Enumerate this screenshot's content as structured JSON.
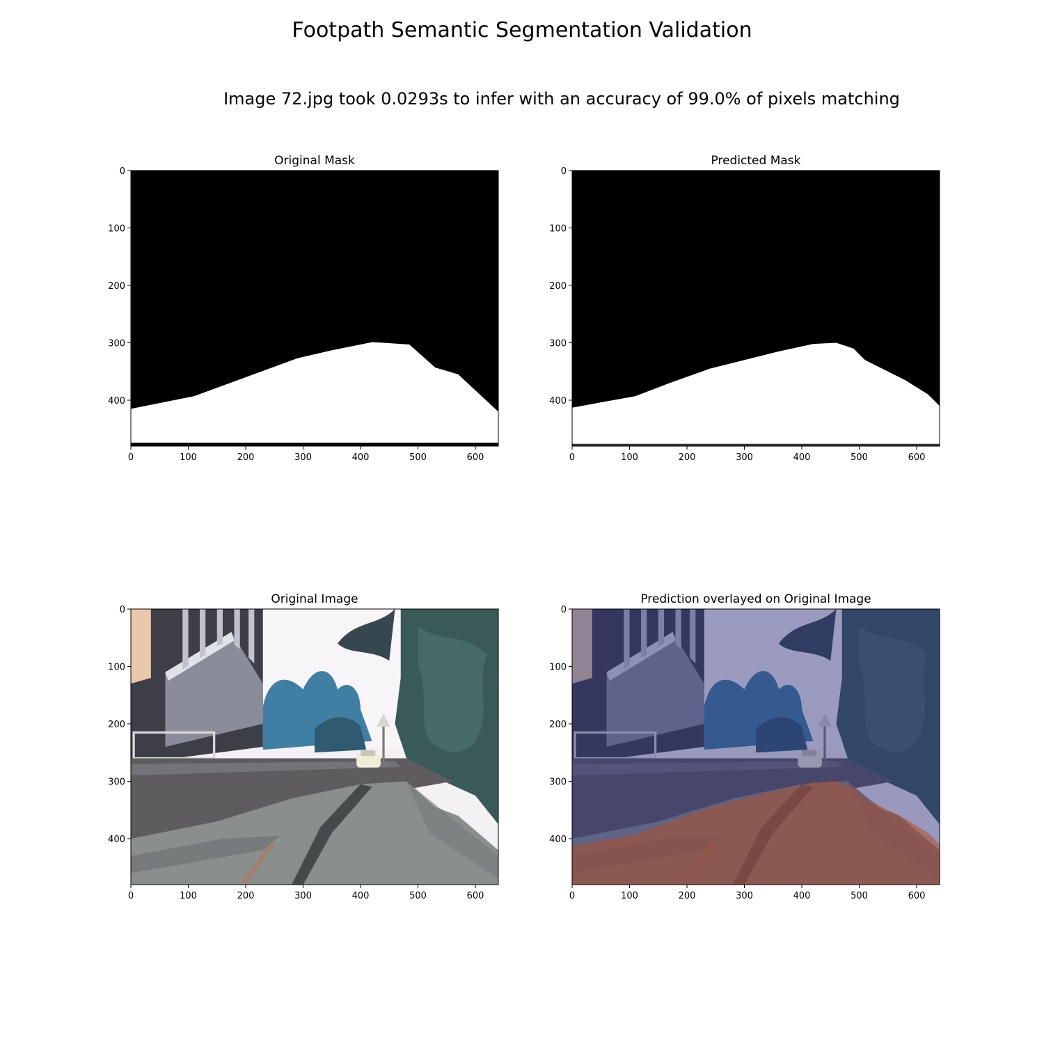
{
  "figure": {
    "suptitle": "Footpath Semantic Segmentation Validation",
    "subtitle": "Image 72.jpg took 0.0293s to infer with an accuracy of 99.0% of pixels matching"
  },
  "chart_data": [
    {
      "type": "image",
      "title": "Original Mask",
      "xlim": [
        0,
        640
      ],
      "ylim": [
        480,
        0
      ],
      "xticks": [
        0,
        100,
        200,
        300,
        400,
        500,
        600
      ],
      "yticks": [
        0,
        100,
        200,
        300,
        400
      ],
      "mask_boundary": [
        [
          0,
          415
        ],
        [
          50,
          405
        ],
        [
          110,
          393
        ],
        [
          200,
          360
        ],
        [
          290,
          327
        ],
        [
          350,
          313
        ],
        [
          420,
          299
        ],
        [
          440,
          300
        ],
        [
          485,
          303
        ],
        [
          530,
          343
        ],
        [
          570,
          355
        ],
        [
          640,
          420
        ]
      ],
      "colors": {
        "background": "#000000",
        "footpath": "#ffffff"
      }
    },
    {
      "type": "image",
      "title": "Predicted Mask",
      "xlim": [
        0,
        640
      ],
      "ylim": [
        480,
        0
      ],
      "xticks": [
        0,
        100,
        200,
        300,
        400,
        500,
        600
      ],
      "yticks": [
        0,
        100,
        200,
        300,
        400
      ],
      "mask_boundary": [
        [
          0,
          413
        ],
        [
          60,
          402
        ],
        [
          110,
          393
        ],
        [
          170,
          370
        ],
        [
          240,
          345
        ],
        [
          300,
          330
        ],
        [
          360,
          315
        ],
        [
          420,
          302
        ],
        [
          460,
          300
        ],
        [
          490,
          310
        ],
        [
          510,
          330
        ],
        [
          540,
          345
        ],
        [
          580,
          365
        ],
        [
          620,
          390
        ],
        [
          640,
          410
        ]
      ],
      "colors": {
        "background": "#000000",
        "footpath": "#ffffff"
      }
    },
    {
      "type": "image",
      "title": "Original Image",
      "xlim": [
        0,
        640
      ],
      "ylim": [
        480,
        0
      ],
      "xticks": [
        0,
        100,
        200,
        300,
        400,
        500,
        600
      ],
      "yticks": [
        0,
        100,
        200,
        300,
        400
      ]
    },
    {
      "type": "image",
      "title": "Prediction overlayed on Original Image",
      "xlim": [
        0,
        640
      ],
      "ylim": [
        480,
        0
      ],
      "xticks": [
        0,
        100,
        200,
        300,
        400,
        500,
        600
      ],
      "yticks": [
        0,
        100,
        200,
        300,
        400
      ],
      "overlay_colors": {
        "background": "#2a2f7a",
        "footpath": "#b0502a"
      }
    }
  ]
}
